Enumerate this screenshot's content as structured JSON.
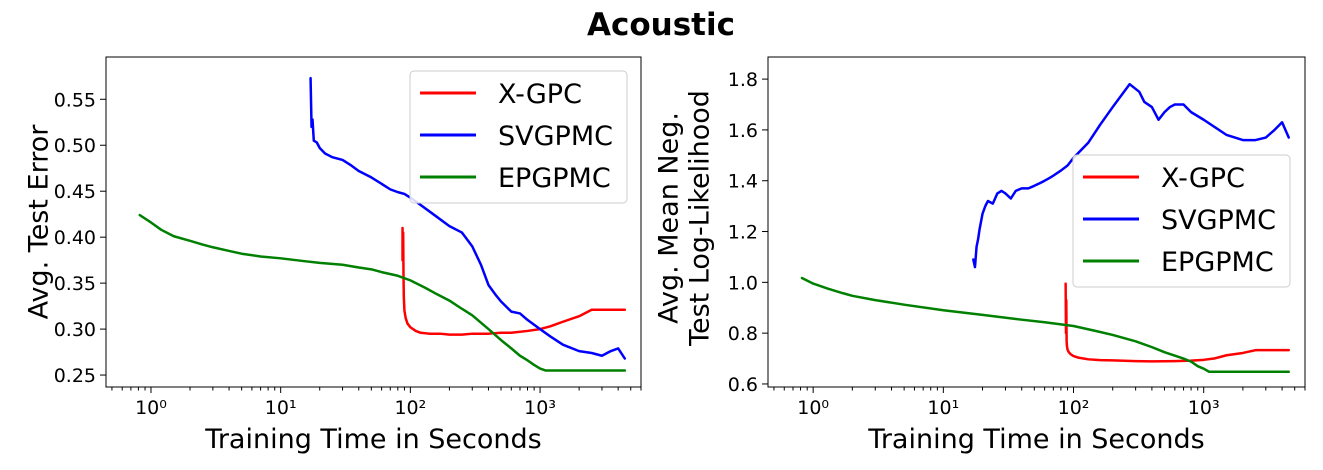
{
  "figure_title": "Acoustic",
  "chart_data": [
    {
      "type": "line",
      "xscale": "log",
      "xlabel": "Training Time in Seconds",
      "ylabel": "Avg. Test Error",
      "xlim": [
        0.45,
        6000
      ],
      "ylim": [
        0.237,
        0.596
      ],
      "x_ticks": [
        1,
        10,
        100,
        1000
      ],
      "x_tick_labels": [
        "10⁰",
        "10¹",
        "10²",
        "10³"
      ],
      "y_ticks": [
        0.25,
        0.3,
        0.35,
        0.4,
        0.45,
        0.5,
        0.55
      ],
      "y_tick_labels": [
        "0.25",
        "0.30",
        "0.35",
        "0.40",
        "0.45",
        "0.50",
        "0.55"
      ],
      "grid": false,
      "legend_position": "top-right",
      "series": [
        {
          "name": "X-GPC",
          "color": "#ff0000",
          "x": [
            87,
            87,
            88,
            88.5,
            89,
            90,
            92,
            95,
            100,
            110,
            120,
            140,
            170,
            200,
            250,
            300,
            400,
            500,
            600,
            800,
            1000,
            1200,
            1500,
            2000,
            2500,
            3000,
            3500,
            4000,
            4500
          ],
          "y": [
            0.41,
            0.375,
            0.405,
            0.36,
            0.335,
            0.32,
            0.312,
            0.306,
            0.302,
            0.298,
            0.296,
            0.295,
            0.295,
            0.294,
            0.294,
            0.295,
            0.295,
            0.296,
            0.296,
            0.298,
            0.3,
            0.303,
            0.308,
            0.314,
            0.321,
            0.321,
            0.321,
            0.321,
            0.321
          ]
        },
        {
          "name": "SVGPMC",
          "color": "#0000ff",
          "x": [
            17,
            17.3,
            17.6,
            18,
            19,
            20,
            22,
            25,
            30,
            35,
            40,
            50,
            60,
            70,
            80,
            90,
            100,
            120,
            150,
            200,
            250,
            300,
            350,
            400,
            450,
            500,
            600,
            700,
            800,
            1000,
            1200,
            1500,
            2000,
            2500,
            3000,
            3500,
            4000,
            4500
          ],
          "y": [
            0.573,
            0.52,
            0.528,
            0.505,
            0.503,
            0.497,
            0.491,
            0.487,
            0.484,
            0.478,
            0.472,
            0.465,
            0.458,
            0.452,
            0.449,
            0.447,
            0.443,
            0.435,
            0.425,
            0.412,
            0.405,
            0.39,
            0.37,
            0.348,
            0.338,
            0.33,
            0.319,
            0.317,
            0.31,
            0.3,
            0.292,
            0.283,
            0.276,
            0.274,
            0.271,
            0.276,
            0.279,
            0.268
          ]
        },
        {
          "name": "EPGPMC",
          "color": "#008000",
          "x": [
            0.82,
            1,
            1.2,
            1.5,
            2,
            2.5,
            3,
            4,
            5,
            7,
            10,
            15,
            20,
            30,
            40,
            50,
            60,
            80,
            100,
            130,
            160,
            200,
            250,
            300,
            400,
            500,
            600,
            700,
            800,
            900,
            1000,
            1100,
            1500,
            2000,
            3000,
            4500
          ],
          "y": [
            0.424,
            0.416,
            0.408,
            0.401,
            0.396,
            0.392,
            0.389,
            0.385,
            0.382,
            0.379,
            0.377,
            0.374,
            0.372,
            0.37,
            0.367,
            0.365,
            0.362,
            0.358,
            0.353,
            0.345,
            0.338,
            0.331,
            0.322,
            0.315,
            0.3,
            0.288,
            0.279,
            0.271,
            0.266,
            0.261,
            0.257,
            0.255,
            0.255,
            0.255,
            0.255,
            0.255
          ]
        }
      ]
    },
    {
      "type": "line",
      "xscale": "log",
      "xlabel": "Training Time in Seconds",
      "ylabel": "Avg. Mean Neg.\nTest Log-Likelihood",
      "ylabel_lines": [
        "Avg. Mean Neg.",
        "Test Log-Likelihood"
      ],
      "xlim": [
        0.45,
        6000
      ],
      "ylim": [
        0.588,
        1.887
      ],
      "x_ticks": [
        1,
        10,
        100,
        1000
      ],
      "x_tick_labels": [
        "10⁰",
        "10¹",
        "10²",
        "10³"
      ],
      "y_ticks": [
        0.6,
        0.8,
        1.0,
        1.2,
        1.4,
        1.6,
        1.8
      ],
      "y_tick_labels": [
        "0.6",
        "0.8",
        "1.0",
        "1.2",
        "1.4",
        "1.6",
        "1.8"
      ],
      "grid": false,
      "legend_position": "center-right",
      "series": [
        {
          "name": "X-GPC",
          "color": "#ff0000",
          "x": [
            87,
            87.5,
            88,
            88.5,
            89,
            90,
            92,
            95,
            100,
            110,
            130,
            160,
            200,
            300,
            400,
            600,
            800,
            1000,
            1200,
            1500,
            2000,
            2500,
            3000,
            4500
          ],
          "y": [
            0.995,
            0.8,
            0.93,
            0.77,
            0.75,
            0.735,
            0.725,
            0.717,
            0.71,
            0.703,
            0.697,
            0.694,
            0.693,
            0.69,
            0.689,
            0.69,
            0.692,
            0.695,
            0.7,
            0.713,
            0.722,
            0.733,
            0.733,
            0.733
          ]
        },
        {
          "name": "SVGPMC",
          "color": "#0000ff",
          "x": [
            17,
            17.5,
            18,
            18.5,
            19,
            20,
            21,
            22,
            24,
            26,
            28,
            30,
            33,
            36,
            40,
            45,
            50,
            55,
            60,
            65,
            70,
            80,
            90,
            100,
            130,
            160,
            200,
            270,
            320,
            350,
            400,
            450,
            500,
            550,
            600,
            700,
            800,
            1000,
            1500,
            2000,
            2500,
            3000,
            3500,
            4000,
            4500
          ],
          "y": [
            1.09,
            1.06,
            1.14,
            1.17,
            1.21,
            1.27,
            1.3,
            1.32,
            1.31,
            1.35,
            1.36,
            1.35,
            1.33,
            1.36,
            1.37,
            1.37,
            1.38,
            1.39,
            1.4,
            1.41,
            1.42,
            1.44,
            1.46,
            1.49,
            1.55,
            1.62,
            1.69,
            1.78,
            1.75,
            1.71,
            1.69,
            1.64,
            1.67,
            1.69,
            1.7,
            1.7,
            1.67,
            1.64,
            1.58,
            1.56,
            1.56,
            1.57,
            1.6,
            1.63,
            1.57
          ]
        },
        {
          "name": "EPGPMC",
          "color": "#008000",
          "x": [
            0.82,
            1,
            1.3,
            1.7,
            2,
            3,
            5,
            10,
            20,
            40,
            60,
            100,
            150,
            200,
            300,
            400,
            500,
            700,
            800,
            900,
            1000,
            1100,
            2000,
            4500
          ],
          "y": [
            1.017,
            0.995,
            0.975,
            0.957,
            0.947,
            0.93,
            0.912,
            0.89,
            0.872,
            0.853,
            0.843,
            0.828,
            0.808,
            0.793,
            0.768,
            0.745,
            0.725,
            0.7,
            0.688,
            0.67,
            0.66,
            0.648,
            0.648,
            0.648
          ]
        }
      ]
    }
  ]
}
